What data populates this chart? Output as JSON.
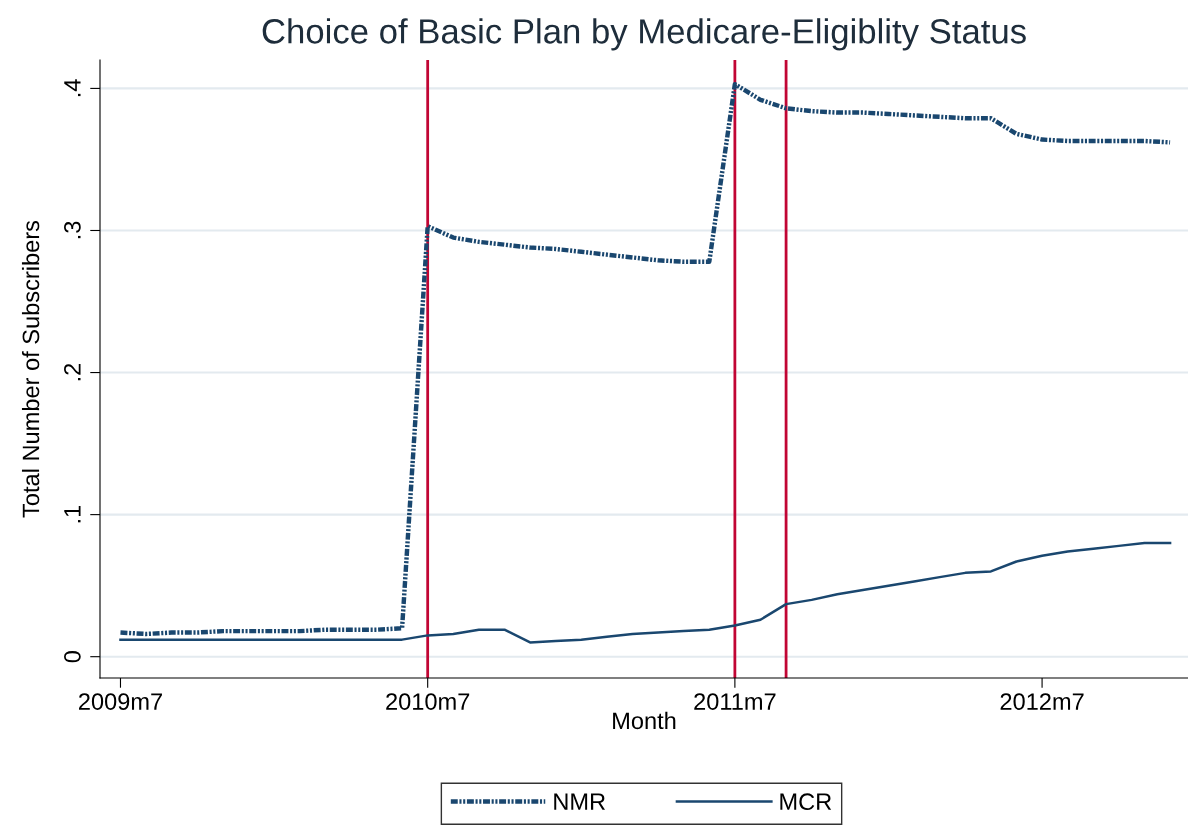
{
  "chart_data": {
    "type": "line",
    "title": "Choice of Basic Plan by Medicare-Eligiblity Status",
    "xlabel": "Month",
    "ylabel": "Total Number of Subscribers",
    "x": [
      "2009-07",
      "2009-08",
      "2009-09",
      "2009-10",
      "2009-11",
      "2009-12",
      "2010-01",
      "2010-02",
      "2010-03",
      "2010-04",
      "2010-05",
      "2010-06",
      "2010-07",
      "2010-08",
      "2010-09",
      "2010-10",
      "2010-11",
      "2010-12",
      "2011-01",
      "2011-02",
      "2011-03",
      "2011-04",
      "2011-05",
      "2011-06",
      "2011-07",
      "2011-08",
      "2011-09",
      "2011-10",
      "2011-11",
      "2011-12",
      "2012-01",
      "2012-02",
      "2012-03",
      "2012-04",
      "2012-05",
      "2012-06",
      "2012-07",
      "2012-08",
      "2012-09",
      "2012-10",
      "2012-11",
      "2012-12"
    ],
    "series": [
      {
        "name": "NMR",
        "color": "#1a476f",
        "line_style": "dashdot",
        "values": [
          0.017,
          0.016,
          0.017,
          0.017,
          0.018,
          0.018,
          0.018,
          0.018,
          0.019,
          0.019,
          0.019,
          0.02,
          0.303,
          0.295,
          0.292,
          0.29,
          0.288,
          0.287,
          0.285,
          0.283,
          0.281,
          0.279,
          0.278,
          0.278,
          0.403,
          0.392,
          0.386,
          0.384,
          0.383,
          0.383,
          0.382,
          0.381,
          0.38,
          0.379,
          0.379,
          0.368,
          0.364,
          0.363,
          0.363,
          0.363,
          0.363,
          0.362
        ]
      },
      {
        "name": "MCR",
        "color": "#1a476f",
        "line_style": "solid",
        "values": [
          0.012,
          0.012,
          0.012,
          0.012,
          0.012,
          0.012,
          0.012,
          0.012,
          0.012,
          0.012,
          0.012,
          0.012,
          0.015,
          0.016,
          0.019,
          0.019,
          0.01,
          0.011,
          0.012,
          0.014,
          0.016,
          0.017,
          0.018,
          0.019,
          0.022,
          0.026,
          0.037,
          0.04,
          0.044,
          0.047,
          0.05,
          0.053,
          0.056,
          0.059,
          0.06,
          0.067,
          0.071,
          0.074,
          0.076,
          0.078,
          0.08,
          0.08
        ]
      }
    ],
    "xlim": [
      "2009-06-07",
      "2012-12-22"
    ],
    "ylim": [
      -0.015,
      0.42
    ],
    "xticks": [
      {
        "value": "2009-07",
        "label": "2009m7"
      },
      {
        "value": "2010-07",
        "label": "2010m7"
      },
      {
        "value": "2011-07",
        "label": "2011m7"
      },
      {
        "value": "2012-07",
        "label": "2012m7"
      }
    ],
    "yticks": [
      {
        "value": 0,
        "label": "0"
      },
      {
        "value": 0.1,
        "label": ".1"
      },
      {
        "value": 0.2,
        "label": ".2"
      },
      {
        "value": 0.3,
        "label": ".3"
      },
      {
        "value": 0.4,
        "label": ".4"
      }
    ],
    "ref_lines": [
      {
        "axis": "x",
        "value": "2010-07",
        "color": "#c10534"
      },
      {
        "axis": "x",
        "value": "2011-07",
        "color": "#c10534"
      },
      {
        "axis": "x",
        "value": "2011-09",
        "color": "#c10534"
      }
    ],
    "grid": "y",
    "legend": "bottom",
    "marker": "none"
  }
}
